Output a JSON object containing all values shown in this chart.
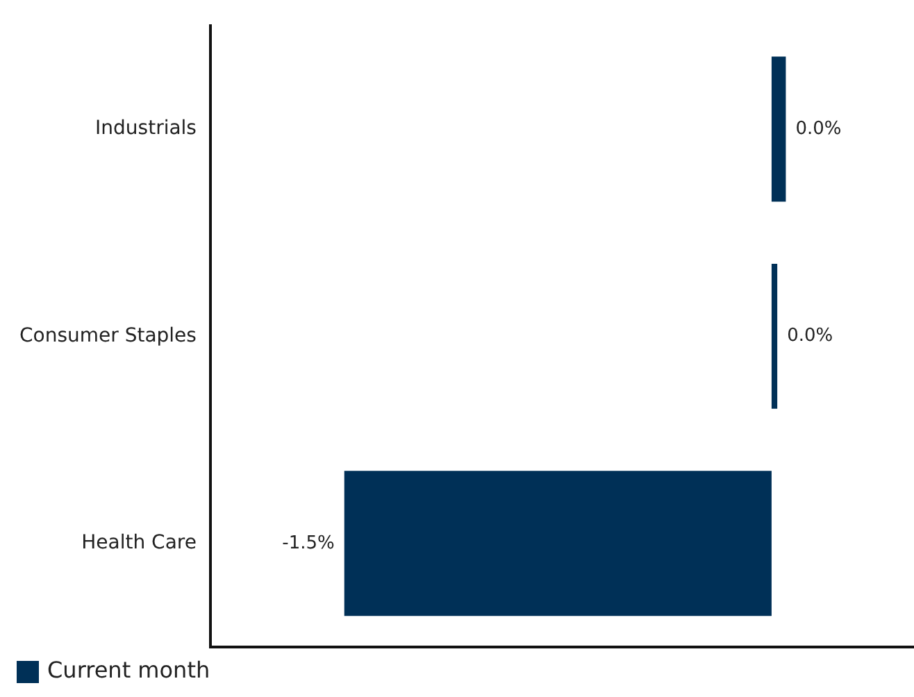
{
  "chart_data": {
    "type": "bar",
    "orientation": "horizontal",
    "categories": [
      "Industrials",
      "Consumer Staples",
      "Health Care"
    ],
    "series": [
      {
        "name": "Current month",
        "color": "#003057",
        "values": [
          0.05,
          0.02,
          -1.5
        ],
        "value_labels": [
          "0.0%",
          "0.0%",
          "-1.5%"
        ]
      }
    ],
    "xlim": [
      -1.97,
      0.5
    ],
    "tick_labels": "y",
    "grid": false,
    "legend": "bottom left"
  }
}
